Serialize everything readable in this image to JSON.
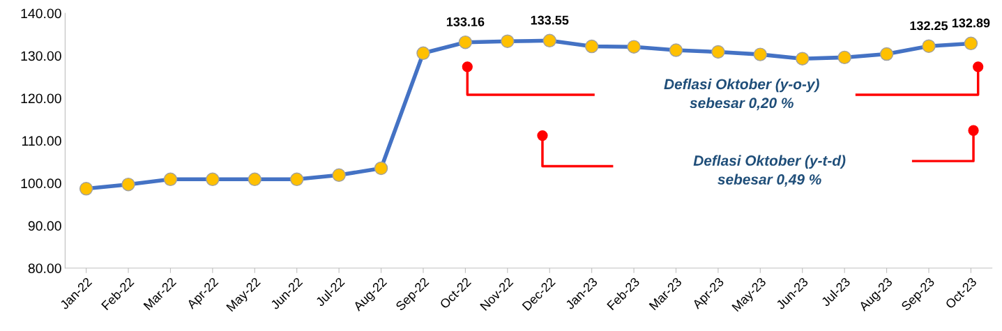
{
  "chart_data": {
    "type": "line",
    "categories": [
      "Jan-22",
      "Feb-22",
      "Mar-22",
      "Apr-22",
      "May-22",
      "Jun-22",
      "Jul-22",
      "Aug-22",
      "Sep-22",
      "Oct-22",
      "Nov-22",
      "Dec-22",
      "Jan-23",
      "Feb-23",
      "Mar-23",
      "Apr-23",
      "May-23",
      "Jun-23",
      "Jul-23",
      "Aug-23",
      "Sep-23",
      "Oct-23"
    ],
    "series": [
      {
        "color": "#4472c4",
        "values": [
          98.7,
          99.7,
          100.9,
          100.9,
          100.9,
          100.9,
          101.9,
          103.5,
          130.6,
          133.16,
          133.4,
          133.55,
          132.2,
          132.1,
          131.3,
          130.9,
          130.3,
          129.3,
          129.6,
          130.4,
          132.25,
          132.89
        ],
        "value_labels": [
          null,
          null,
          null,
          null,
          null,
          null,
          null,
          null,
          null,
          "133.16",
          null,
          "133.55",
          null,
          null,
          null,
          null,
          null,
          null,
          null,
          null,
          "132.25",
          "132.89"
        ]
      }
    ],
    "marker": "circle",
    "line_style": "solid",
    "grid": false,
    "ylim": [
      80,
      140
    ],
    "yticks": [
      {
        "value": 80,
        "label": "80.00"
      },
      {
        "value": 90,
        "label": "90.00"
      },
      {
        "value": 100,
        "label": "100.00"
      },
      {
        "value": 110,
        "label": "110.00"
      },
      {
        "value": 120,
        "label": "120.00"
      },
      {
        "value": 130,
        "label": "130.00"
      },
      {
        "value": 140,
        "label": "140.00"
      }
    ],
    "annotations": [
      "Deflasi Oktober (y-o-y)\nsebesar 0,20 %",
      "Deflasi Oktober (y-t-d)\nsebesar 0,49 %"
    ]
  }
}
